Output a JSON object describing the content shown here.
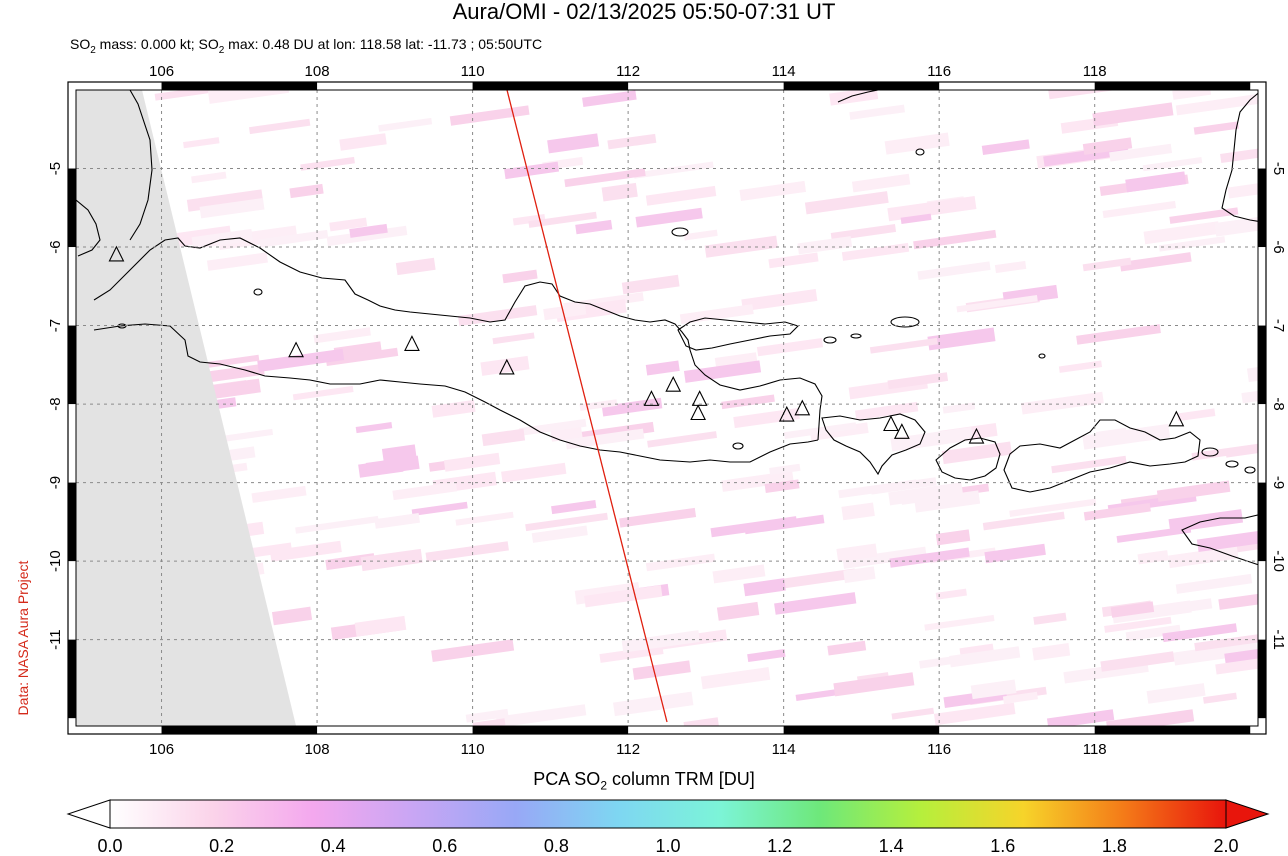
{
  "title": "Aura/OMI - 02/13/2025 05:50-07:31 UT",
  "subtitle": {
    "prefix": "SO",
    "sub1": "2",
    "mid": " mass: 0.000 kt; SO",
    "sub2": "2",
    "rest": " max: 0.48 DU at lon: 118.58 lat: -11.73 ; 05:50UTC"
  },
  "credit": "Data: NASA Aura Project",
  "map": {
    "lon_range": [
      104.9,
      120.1
    ],
    "lat_range": [
      -12.1,
      -4.0
    ],
    "lon_ticks": [
      "106",
      "108",
      "110",
      "112",
      "114",
      "116",
      "118"
    ],
    "lat_ticks": [
      "-5",
      "-6",
      "-7",
      "-8",
      "-9",
      "-10",
      "-11"
    ],
    "grid": true,
    "volcano_marker": "triangle-icon",
    "swath_edge_color": "#e02010",
    "missing_data_color": "#e3e3e3"
  },
  "colorbar": {
    "title_prefix": "PCA SO",
    "title_sub": "2",
    "title_rest": " column TRM [DU]",
    "min": 0.0,
    "max": 2.0,
    "tick_labels": [
      "0.0",
      "0.2",
      "0.4",
      "0.6",
      "0.8",
      "1.0",
      "1.2",
      "1.4",
      "1.6",
      "1.8",
      "2.0"
    ],
    "colors": [
      "#ffffff",
      "#fbd4ea",
      "#f4a8ee",
      "#c8a6f4",
      "#98a8f6",
      "#7ed6f2",
      "#7cf4d8",
      "#6ee87a",
      "#b6ef3c",
      "#f6d42a",
      "#f47a18",
      "#e8150c"
    ]
  }
}
